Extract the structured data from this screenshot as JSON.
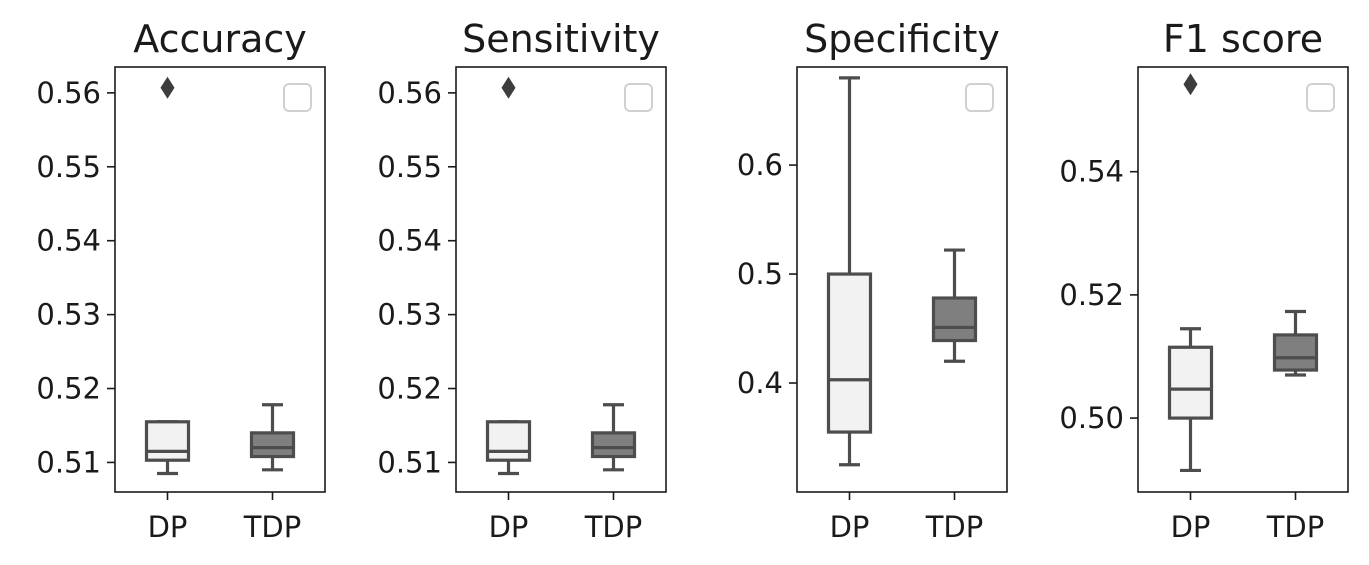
{
  "chart_data": [
    {
      "type": "box",
      "title": "Accuracy",
      "categories": [
        "DP",
        "TDP"
      ],
      "ylim": [
        0.506,
        0.5635
      ],
      "yticks": [
        0.51,
        0.52,
        0.53,
        0.54,
        0.55,
        0.56
      ],
      "ytick_labels": [
        "0.51",
        "0.52",
        "0.53",
        "0.54",
        "0.55",
        "0.56"
      ],
      "legend": "top-right (empty)",
      "boxes": [
        {
          "category": "DP",
          "whislo": 0.5085,
          "q1": 0.5103,
          "med": 0.5115,
          "q3": 0.5155,
          "whishi": 0.5155,
          "fliers": [
            0.5607
          ],
          "color": "#f2f2f2"
        },
        {
          "category": "TDP",
          "whislo": 0.509,
          "q1": 0.5108,
          "med": 0.512,
          "q3": 0.514,
          "whishi": 0.5178,
          "fliers": [],
          "color": "#7f7f7f"
        }
      ]
    },
    {
      "type": "box",
      "title": "Sensitivity",
      "categories": [
        "DP",
        "TDP"
      ],
      "ylim": [
        0.506,
        0.5635
      ],
      "yticks": [
        0.51,
        0.52,
        0.53,
        0.54,
        0.55,
        0.56
      ],
      "ytick_labels": [
        "0.51",
        "0.52",
        "0.53",
        "0.54",
        "0.55",
        "0.56"
      ],
      "legend": "top-right (empty)",
      "boxes": [
        {
          "category": "DP",
          "whislo": 0.5085,
          "q1": 0.5103,
          "med": 0.5115,
          "q3": 0.5155,
          "whishi": 0.5155,
          "fliers": [
            0.5607
          ],
          "color": "#f2f2f2"
        },
        {
          "category": "TDP",
          "whislo": 0.509,
          "q1": 0.5108,
          "med": 0.512,
          "q3": 0.514,
          "whishi": 0.5178,
          "fliers": [],
          "color": "#7f7f7f"
        }
      ]
    },
    {
      "type": "box",
      "title": "Specificity",
      "categories": [
        "DP",
        "TDP"
      ],
      "ylim": [
        0.3,
        0.69
      ],
      "yticks": [
        0.4,
        0.5,
        0.6
      ],
      "ytick_labels": [
        "0.4",
        "0.5",
        "0.6"
      ],
      "legend": "top-right (empty)",
      "boxes": [
        {
          "category": "DP",
          "whislo": 0.325,
          "q1": 0.355,
          "med": 0.403,
          "q3": 0.5,
          "whishi": 0.68,
          "fliers": [],
          "color": "#f2f2f2"
        },
        {
          "category": "TDP",
          "whislo": 0.42,
          "q1": 0.439,
          "med": 0.451,
          "q3": 0.478,
          "whishi": 0.522,
          "fliers": [],
          "color": "#7f7f7f"
        }
      ]
    },
    {
      "type": "box",
      "title": "F1 score",
      "categories": [
        "DP",
        "TDP"
      ],
      "ylim": [
        0.488,
        0.557
      ],
      "yticks": [
        0.5,
        0.52,
        0.54
      ],
      "ytick_labels": [
        "0.50",
        "0.52",
        "0.54"
      ],
      "legend": "top-right (empty)",
      "boxes": [
        {
          "category": "DP",
          "whislo": 0.4915,
          "q1": 0.5,
          "med": 0.5047,
          "q3": 0.5115,
          "whishi": 0.5145,
          "fliers": [
            0.5542
          ],
          "color": "#f2f2f2"
        },
        {
          "category": "TDP",
          "whislo": 0.507,
          "q1": 0.5078,
          "med": 0.5098,
          "q3": 0.5135,
          "whishi": 0.5173,
          "fliers": [],
          "color": "#7f7f7f"
        }
      ]
    }
  ]
}
